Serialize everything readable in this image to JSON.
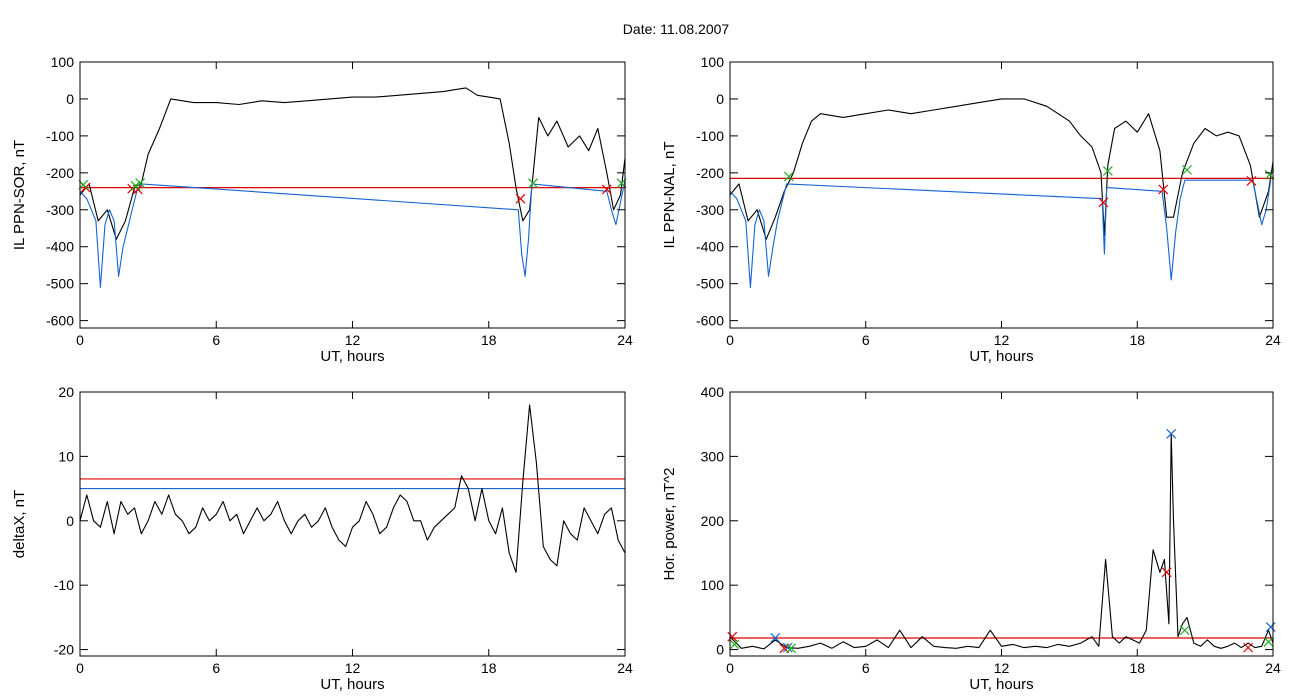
{
  "figure": {
    "title": "Date:  11.08.2007"
  },
  "chart_data": [
    {
      "type": "line",
      "xlabel": "UT, hours",
      "ylabel": "IL PPN-SOR, nT",
      "xlim": [
        0,
        24
      ],
      "ylim": [
        -620,
        100
      ],
      "xticks": [
        0,
        6,
        12,
        18,
        24
      ],
      "yticks": [
        -600,
        -500,
        -400,
        -300,
        -200,
        -100,
        0,
        100
      ],
      "threshold_lines": [
        {
          "y": -240,
          "color": "#e00000"
        }
      ],
      "series": [
        {
          "color": "#000000",
          "x": [
            0,
            0.4,
            0.8,
            1.2,
            1.6,
            2.0,
            2.4,
            2.7,
            3.0,
            3.5,
            4.0,
            5.0,
            6.0,
            7.0,
            8.0,
            9.0,
            10.0,
            11.0,
            12.0,
            13.0,
            14.0,
            15.0,
            16.0,
            16.5,
            17.0,
            17.5,
            18.0,
            18.5,
            18.9,
            19.2,
            19.5,
            19.8,
            20.2,
            20.6,
            21.0,
            21.5,
            22.0,
            22.4,
            22.8,
            23.2,
            23.5,
            23.8,
            24.0
          ],
          "y": [
            -260,
            -230,
            -330,
            -300,
            -380,
            -330,
            -240,
            -230,
            -150,
            -80,
            0,
            -10,
            -10,
            -15,
            -5,
            -10,
            -5,
            0,
            5,
            5,
            10,
            15,
            20,
            25,
            30,
            10,
            5,
            0,
            -120,
            -240,
            -330,
            -300,
            -50,
            -100,
            -60,
            -130,
            -100,
            -140,
            -80,
            -200,
            -300,
            -260,
            -160
          ]
        },
        {
          "color": "#1464d2",
          "x": [
            0,
            0.3,
            0.5,
            0.7,
            0.9,
            1.1,
            1.3,
            1.5,
            1.7,
            1.9,
            2.1,
            2.3,
            2.5,
            2.7,
            19.3,
            19.45,
            19.6,
            19.75,
            19.9,
            23.2,
            23.4,
            23.6,
            23.8,
            24.0
          ],
          "y": [
            -250,
            -270,
            -300,
            -330,
            -510,
            -340,
            -300,
            -330,
            -480,
            -400,
            -350,
            -300,
            -250,
            -230,
            -300,
            -420,
            -480,
            -380,
            -230,
            -250,
            -300,
            -340,
            -280,
            -220
          ]
        }
      ],
      "markers": [
        {
          "x": 0.25,
          "y": -240,
          "color": "#e00000",
          "shape": "x"
        },
        {
          "x": 2.3,
          "y": -243,
          "color": "#e00000",
          "shape": "x"
        },
        {
          "x": 2.55,
          "y": -245,
          "color": "#e00000",
          "shape": "x"
        },
        {
          "x": 19.4,
          "y": -270,
          "color": "#e00000",
          "shape": "x"
        },
        {
          "x": 23.2,
          "y": -245,
          "color": "#e00000",
          "shape": "x"
        },
        {
          "x": 0.15,
          "y": -232,
          "color": "#20b020",
          "shape": "x"
        },
        {
          "x": 2.45,
          "y": -235,
          "color": "#20b020",
          "shape": "x"
        },
        {
          "x": 2.65,
          "y": -228,
          "color": "#20b020",
          "shape": "x"
        },
        {
          "x": 19.95,
          "y": -228,
          "color": "#20b020",
          "shape": "x"
        },
        {
          "x": 23.85,
          "y": -228,
          "color": "#20b020",
          "shape": "x"
        }
      ]
    },
    {
      "type": "line",
      "xlabel": "UT, hours",
      "ylabel": "IL PPN-NAL, nT",
      "xlim": [
        0,
        24
      ],
      "ylim": [
        -620,
        100
      ],
      "xticks": [
        0,
        6,
        12,
        18,
        24
      ],
      "yticks": [
        -600,
        -500,
        -400,
        -300,
        -200,
        -100,
        0,
        100
      ],
      "threshold_lines": [
        {
          "y": -215,
          "color": "#e00000"
        }
      ],
      "series": [
        {
          "color": "#000000",
          "x": [
            0,
            0.4,
            0.8,
            1.2,
            1.6,
            2.0,
            2.4,
            2.8,
            3.2,
            3.6,
            4.0,
            5.0,
            6.0,
            7.0,
            8.0,
            9.0,
            10.0,
            11.0,
            12.0,
            13.0,
            14.0,
            15.0,
            15.5,
            16.0,
            16.4,
            16.55,
            16.7,
            17.0,
            17.5,
            18.0,
            18.5,
            19.0,
            19.3,
            19.6,
            20.0,
            20.5,
            21.0,
            21.5,
            22.0,
            22.5,
            23.0,
            23.4,
            23.8,
            24.0
          ],
          "y": [
            -260,
            -230,
            -330,
            -300,
            -380,
            -320,
            -250,
            -200,
            -120,
            -60,
            -40,
            -50,
            -40,
            -30,
            -40,
            -30,
            -20,
            -10,
            0,
            0,
            -20,
            -60,
            -100,
            -130,
            -200,
            -370,
            -180,
            -80,
            -60,
            -90,
            -40,
            -140,
            -320,
            -320,
            -200,
            -120,
            -80,
            -100,
            -90,
            -100,
            -180,
            -320,
            -250,
            -170
          ]
        },
        {
          "color": "#1464d2",
          "x": [
            0,
            0.3,
            0.5,
            0.7,
            0.9,
            1.1,
            1.3,
            1.5,
            1.7,
            1.9,
            2.1,
            2.3,
            2.5,
            16.45,
            16.55,
            16.65,
            19.1,
            19.3,
            19.5,
            19.7,
            19.9,
            20.1,
            23.1,
            23.3,
            23.5,
            23.7,
            23.9
          ],
          "y": [
            -250,
            -270,
            -300,
            -330,
            -510,
            -340,
            -300,
            -330,
            -480,
            -400,
            -330,
            -280,
            -230,
            -270,
            -420,
            -240,
            -250,
            -350,
            -490,
            -360,
            -270,
            -220,
            -220,
            -280,
            -340,
            -300,
            -220
          ]
        }
      ],
      "markers": [
        {
          "x": 16.5,
          "y": -280,
          "color": "#e00000",
          "shape": "x"
        },
        {
          "x": 19.15,
          "y": -245,
          "color": "#e00000",
          "shape": "x"
        },
        {
          "x": 23.05,
          "y": -222,
          "color": "#e00000",
          "shape": "x"
        },
        {
          "x": 2.6,
          "y": -210,
          "color": "#20b020",
          "shape": "x"
        },
        {
          "x": 16.7,
          "y": -195,
          "color": "#20b020",
          "shape": "x"
        },
        {
          "x": 20.2,
          "y": -192,
          "color": "#20b020",
          "shape": "x"
        },
        {
          "x": 23.85,
          "y": -205,
          "color": "#20b020",
          "shape": "x"
        }
      ]
    },
    {
      "type": "line",
      "xlabel": "UT, hours",
      "ylabel": "deltaX, nT",
      "xlim": [
        0,
        24
      ],
      "ylim": [
        -21,
        20
      ],
      "xticks": [
        0,
        6,
        12,
        18,
        24
      ],
      "yticks": [
        -20,
        -10,
        0,
        10,
        20
      ],
      "threshold_lines": [
        {
          "y": 6.5,
          "color": "#e00000"
        },
        {
          "y": 5.0,
          "color": "#1464d2"
        }
      ],
      "series": [
        {
          "color": "#000000",
          "x": [
            0,
            0.3,
            0.6,
            0.9,
            1.2,
            1.5,
            1.8,
            2.1,
            2.4,
            2.7,
            3.0,
            3.3,
            3.6,
            3.9,
            4.2,
            4.5,
            4.8,
            5.1,
            5.4,
            5.7,
            6.0,
            6.3,
            6.6,
            6.9,
            7.2,
            7.5,
            7.8,
            8.1,
            8.4,
            8.7,
            9.0,
            9.3,
            9.6,
            9.9,
            10.2,
            10.5,
            10.8,
            11.1,
            11.4,
            11.7,
            12.0,
            12.3,
            12.6,
            12.9,
            13.2,
            13.5,
            13.8,
            14.1,
            14.4,
            14.7,
            15.0,
            15.3,
            15.6,
            15.9,
            16.2,
            16.5,
            16.8,
            17.1,
            17.4,
            17.7,
            18.0,
            18.3,
            18.6,
            18.9,
            19.2,
            19.5,
            19.8,
            20.1,
            20.4,
            20.7,
            21.0,
            21.3,
            21.6,
            21.9,
            22.2,
            22.5,
            22.8,
            23.1,
            23.4,
            23.7,
            24.0
          ],
          "y": [
            0,
            4,
            0,
            -1,
            3,
            -2,
            3,
            1,
            2,
            -2,
            0,
            3,
            1,
            4,
            1,
            0,
            -2,
            -1,
            2,
            0,
            1,
            3,
            0,
            1,
            -2,
            0,
            2,
            0,
            1,
            3,
            0,
            -2,
            0,
            1,
            -1,
            0,
            2,
            -1,
            -3,
            -4,
            -1,
            0,
            3,
            1,
            -2,
            -1,
            2,
            4,
            3,
            0,
            0,
            -3,
            -1,
            0,
            1,
            2,
            7,
            5,
            0,
            5,
            0,
            -2,
            2,
            -5,
            -8,
            6,
            18,
            9,
            -4,
            -6,
            -7,
            0,
            -2,
            -3,
            2,
            0,
            -2,
            1,
            2,
            -3,
            -5
          ]
        }
      ],
      "markers": []
    },
    {
      "type": "line",
      "xlabel": "UT, hours",
      "ylabel": "Hor. power, nT^2",
      "xlim": [
        0,
        24
      ],
      "ylim": [
        -10,
        400
      ],
      "xticks": [
        0,
        6,
        12,
        18,
        24
      ],
      "yticks": [
        0,
        100,
        200,
        300,
        400
      ],
      "threshold_lines": [
        {
          "y": 18,
          "color": "#e00000"
        }
      ],
      "series": [
        {
          "color": "#000000",
          "x": [
            0,
            0.5,
            1.0,
            1.5,
            2.0,
            2.5,
            3.0,
            3.5,
            4.0,
            4.5,
            5.0,
            5.5,
            6.0,
            6.5,
            7.0,
            7.5,
            8.0,
            8.5,
            9.0,
            9.5,
            10.0,
            10.5,
            11.0,
            11.5,
            12.0,
            12.5,
            13.0,
            13.5,
            14.0,
            14.5,
            15.0,
            15.5,
            16.0,
            16.3,
            16.6,
            16.9,
            17.2,
            17.5,
            17.8,
            18.1,
            18.4,
            18.7,
            19.0,
            19.2,
            19.4,
            19.5,
            19.6,
            19.8,
            20.0,
            20.2,
            20.5,
            20.8,
            21.1,
            21.4,
            21.7,
            22.0,
            22.3,
            22.6,
            22.9,
            23.2,
            23.5,
            23.8,
            24.0
          ],
          "y": [
            20,
            2,
            5,
            1,
            15,
            3,
            2,
            5,
            10,
            2,
            12,
            3,
            5,
            15,
            3,
            30,
            3,
            20,
            5,
            3,
            2,
            5,
            3,
            30,
            5,
            8,
            3,
            5,
            3,
            8,
            5,
            10,
            20,
            5,
            140,
            20,
            10,
            20,
            15,
            10,
            30,
            155,
            120,
            140,
            40,
            335,
            200,
            20,
            40,
            50,
            10,
            5,
            15,
            5,
            2,
            5,
            10,
            3,
            10,
            3,
            5,
            30,
            10
          ]
        }
      ],
      "markers": [
        {
          "x": 19.5,
          "y": 335,
          "color": "#1464d2",
          "shape": "x"
        },
        {
          "x": 2.0,
          "y": 18,
          "color": "#1464d2",
          "shape": "x"
        },
        {
          "x": 2.55,
          "y": 3,
          "color": "#1464d2",
          "shape": "x"
        },
        {
          "x": 23.9,
          "y": 35,
          "color": "#1464d2",
          "shape": "x"
        },
        {
          "x": 19.3,
          "y": 120,
          "color": "#e00000",
          "shape": "x"
        },
        {
          "x": 2.4,
          "y": 2,
          "color": "#e00000",
          "shape": "x"
        },
        {
          "x": 0.1,
          "y": 20,
          "color": "#e00000",
          "shape": "x"
        },
        {
          "x": 22.9,
          "y": 3,
          "color": "#e00000",
          "shape": "x"
        },
        {
          "x": 2.7,
          "y": 2,
          "color": "#20b020",
          "shape": "x"
        },
        {
          "x": 20.1,
          "y": 30,
          "color": "#20b020",
          "shape": "x"
        },
        {
          "x": 0.2,
          "y": 8,
          "color": "#20b020",
          "shape": "x"
        },
        {
          "x": 23.8,
          "y": 12,
          "color": "#20b020",
          "shape": "x"
        }
      ]
    }
  ]
}
